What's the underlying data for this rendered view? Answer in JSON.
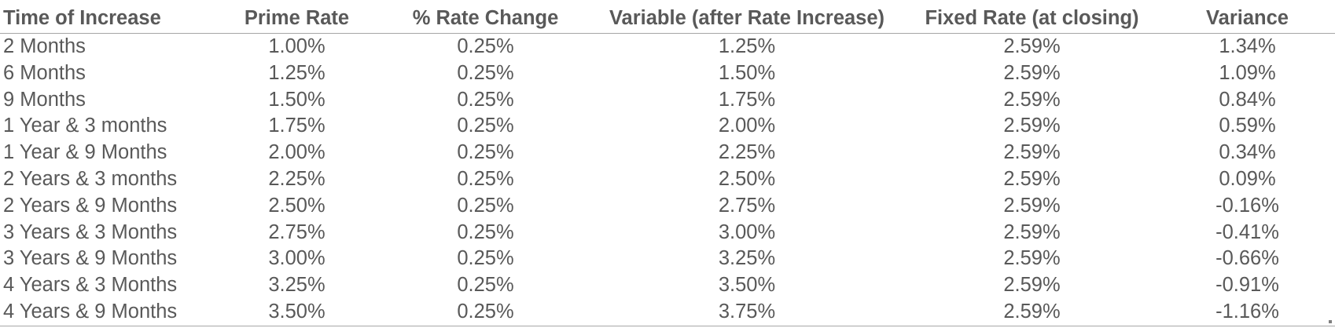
{
  "table": {
    "headers": [
      "Time of Increase",
      "Prime Rate",
      "% Rate Change",
      "Variable (after Rate Increase)",
      "Fixed Rate (at closing)",
      "Variance"
    ],
    "rows": [
      [
        "2 Months",
        "1.00%",
        "0.25%",
        "1.25%",
        "2.59%",
        "1.34%"
      ],
      [
        "6 Months",
        "1.25%",
        "0.25%",
        "1.50%",
        "2.59%",
        "1.09%"
      ],
      [
        "9 Months",
        "1.50%",
        "0.25%",
        "1.75%",
        "2.59%",
        "0.84%"
      ],
      [
        "1 Year & 3 months",
        "1.75%",
        "0.25%",
        "2.00%",
        "2.59%",
        "0.59%"
      ],
      [
        "1 Year & 9 Months",
        "2.00%",
        "0.25%",
        "2.25%",
        "2.59%",
        "0.34%"
      ],
      [
        "2 Years & 3 months",
        "2.25%",
        "0.25%",
        "2.50%",
        "2.59%",
        "0.09%"
      ],
      [
        "2 Years & 9 Months",
        "2.50%",
        "0.25%",
        "2.75%",
        "2.59%",
        "-0.16%"
      ],
      [
        "3 Years & 3 Months",
        "2.75%",
        "0.25%",
        "3.00%",
        "2.59%",
        "-0.41%"
      ],
      [
        "3 Years & 9 Months",
        "3.00%",
        "0.25%",
        "3.25%",
        "2.59%",
        "-0.66%"
      ],
      [
        "4 Years & 3 Months",
        "3.25%",
        "0.25%",
        "3.50%",
        "2.59%",
        "-0.91%"
      ],
      [
        "4 Years & 9 Months",
        "3.50%",
        "0.25%",
        "3.75%",
        "2.59%",
        "-1.16%"
      ]
    ]
  },
  "colors": {
    "text": "#595959",
    "rule": "#a6a6a6"
  }
}
